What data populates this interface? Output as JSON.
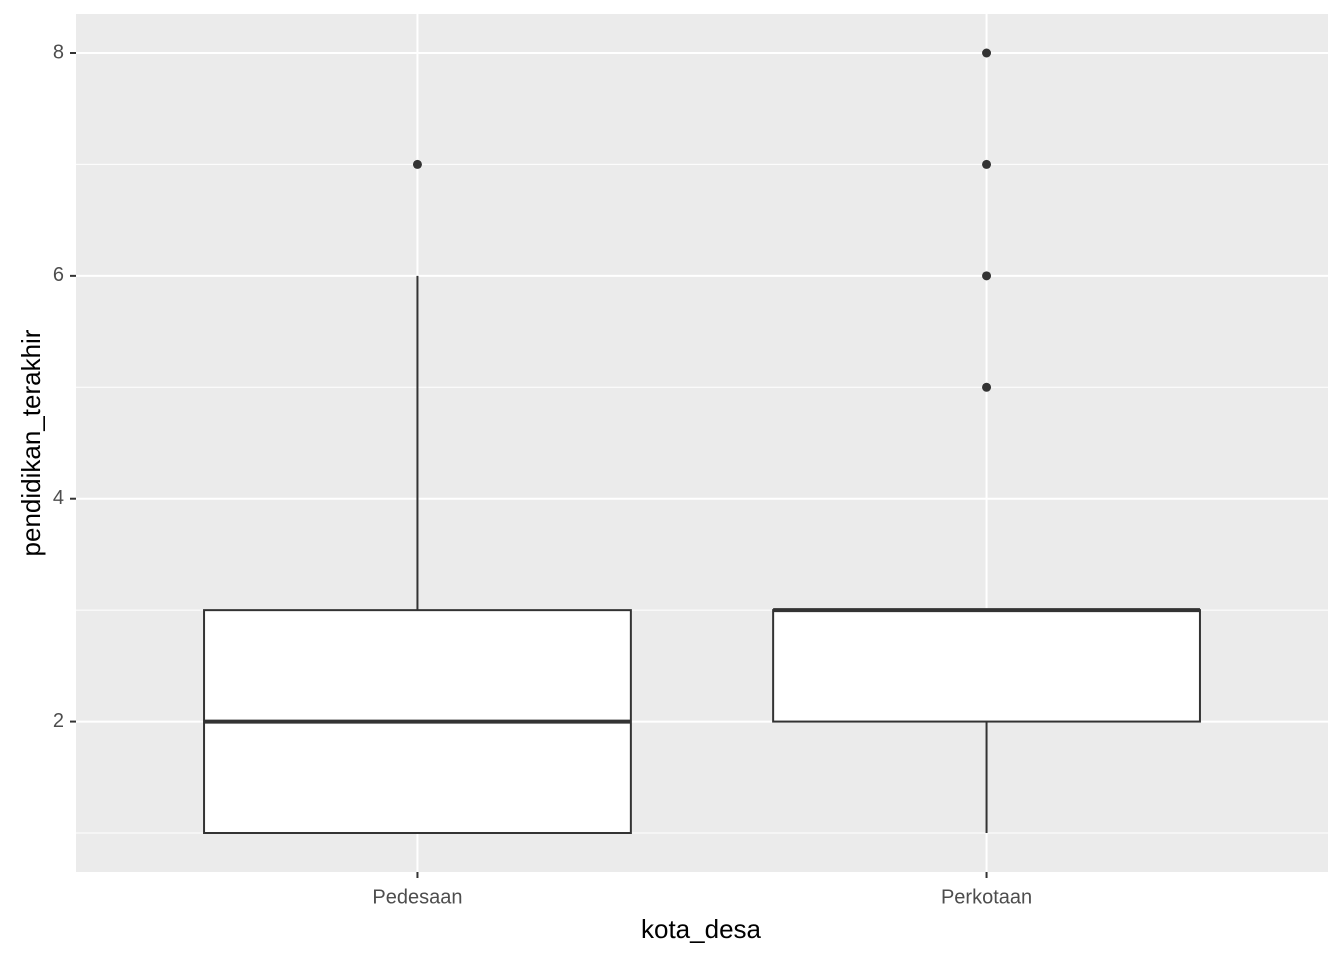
{
  "chart_data": {
    "type": "boxplot",
    "x_label": "kota_desa",
    "y_label": "pendidikan_terakhir",
    "categories": [
      "Pedesaan",
      "Perkotaan"
    ],
    "boxes": [
      {
        "min": 1,
        "q1": 1,
        "median": 2,
        "q3": 3,
        "max": 6,
        "outliers": [
          7
        ]
      },
      {
        "min": 1,
        "q1": 2,
        "median": 3,
        "q3": 3,
        "max": 3,
        "outliers": [
          5,
          6,
          7,
          8
        ]
      }
    ],
    "ylim": [
      0.65,
      8.35
    ],
    "yticks": [
      2,
      4,
      6,
      8
    ],
    "minor_yticks": [
      1,
      3,
      5,
      7
    ],
    "grid": true,
    "panel_color": "#ebebeb",
    "box_fill": "#ffffff",
    "line_color": "#333333"
  }
}
